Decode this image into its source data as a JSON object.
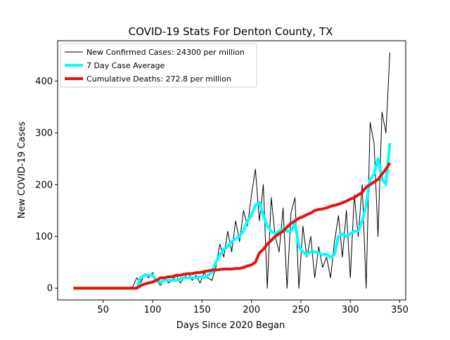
{
  "chart_data": {
    "type": "line",
    "title": "COVID-19 Stats For Denton County, TX",
    "xlabel": "Days Since 2020 Began",
    "ylabel": "New COVID-19 Cases",
    "x": [
      20,
      24,
      28,
      32,
      36,
      40,
      44,
      48,
      52,
      56,
      60,
      64,
      68,
      72,
      76,
      80,
      84,
      88,
      92,
      96,
      100,
      104,
      108,
      112,
      116,
      120,
      124,
      128,
      132,
      136,
      140,
      144,
      148,
      152,
      156,
      160,
      164,
      168,
      172,
      176,
      180,
      184,
      188,
      192,
      196,
      200,
      204,
      208,
      212,
      216,
      220,
      224,
      228,
      232,
      236,
      240,
      244,
      248,
      252,
      256,
      260,
      264,
      268,
      272,
      276,
      280,
      284,
      288,
      292,
      296,
      300,
      304,
      308,
      312,
      316,
      320,
      324,
      328,
      332,
      336,
      340
    ],
    "series": [
      {
        "name": "New Confirmed Cases: 24300 per million",
        "color": "#000000",
        "width": 1,
        "values": [
          0,
          0,
          0,
          0,
          0,
          0,
          0,
          0,
          0,
          0,
          0,
          0,
          0,
          0,
          0,
          3,
          20,
          10,
          28,
          20,
          30,
          15,
          5,
          20,
          10,
          15,
          25,
          10,
          20,
          30,
          15,
          25,
          10,
          30,
          20,
          15,
          40,
          85,
          60,
          110,
          70,
          130,
          90,
          150,
          120,
          180,
          230,
          130,
          200,
          0,
          175,
          100,
          70,
          155,
          0,
          145,
          175,
          0,
          120,
          60,
          100,
          20,
          80,
          40,
          60,
          20,
          90,
          140,
          60,
          150,
          20,
          180,
          100,
          200,
          0,
          320,
          280,
          100,
          340,
          300,
          455
        ]
      },
      {
        "name": "7 Day Case Average",
        "color": "#00ffff",
        "width": 4,
        "values": [
          0,
          0,
          0,
          0,
          0,
          0,
          0,
          0,
          0,
          0,
          0,
          0,
          0,
          0,
          0,
          0,
          0,
          20,
          25,
          25,
          25,
          15,
          12,
          15,
          15,
          15,
          15,
          18,
          20,
          20,
          20,
          20,
          22,
          20,
          25,
          30,
          50,
          65,
          75,
          80,
          90,
          95,
          100,
          110,
          130,
          140,
          160,
          165,
          140,
          120,
          110,
          105,
          110,
          115,
          110,
          110,
          125,
          80,
          70,
          65,
          70,
          70,
          68,
          65,
          65,
          60,
          65,
          100,
          105,
          100,
          105,
          110,
          110,
          130,
          160,
          210,
          220,
          250,
          210,
          200,
          280
        ]
      },
      {
        "name": "Cumulative Deaths: 272.8 per million",
        "color": "#e8120c",
        "width": 4,
        "values": [
          0,
          0,
          0,
          0,
          0,
          0,
          0,
          0,
          0,
          0,
          0,
          0,
          0,
          0,
          0,
          0,
          0,
          5,
          8,
          10,
          12,
          15,
          20,
          20,
          22,
          22,
          25,
          25,
          27,
          28,
          28,
          30,
          30,
          32,
          33,
          35,
          35,
          36,
          37,
          37,
          37,
          38,
          38,
          40,
          43,
          45,
          50,
          68,
          75,
          85,
          92,
          100,
          105,
          110,
          118,
          125,
          130,
          135,
          138,
          142,
          145,
          150,
          152,
          153,
          155,
          158,
          160,
          162,
          165,
          168,
          172,
          175,
          180,
          185,
          195,
          200,
          205,
          210,
          220,
          230,
          242
        ]
      }
    ],
    "xlim": [
      4,
      356
    ],
    "xticks": [
      50,
      100,
      150,
      200,
      250,
      300,
      350
    ],
    "ylim": [
      -22.75,
      477.75
    ],
    "yticks": [
      0,
      100,
      200,
      300,
      400
    ],
    "legend": "upper left"
  }
}
